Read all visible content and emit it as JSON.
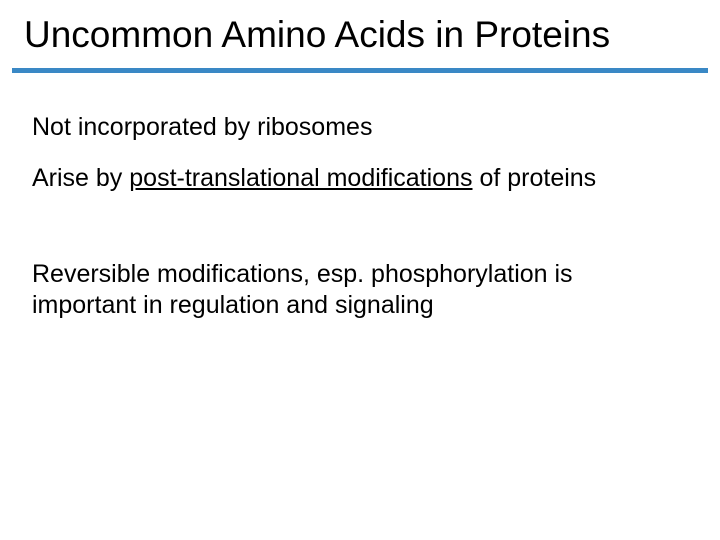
{
  "slide": {
    "title": "Uncommon Amino Acids in Proteins",
    "rule_color": "#3a88c5",
    "background_color": "#ffffff",
    "title_fontsize": 37,
    "body_fontsize": 25,
    "text_color": "#000000",
    "paragraphs": {
      "p1": "Not incorporated by ribosomes",
      "p2_pre": "Arise by ",
      "p2_underlined": "post-translational modifications",
      "p2_post": " of proteins",
      "p3": "Reversible modifications, esp. phosphorylation is important in regulation and signaling"
    }
  }
}
